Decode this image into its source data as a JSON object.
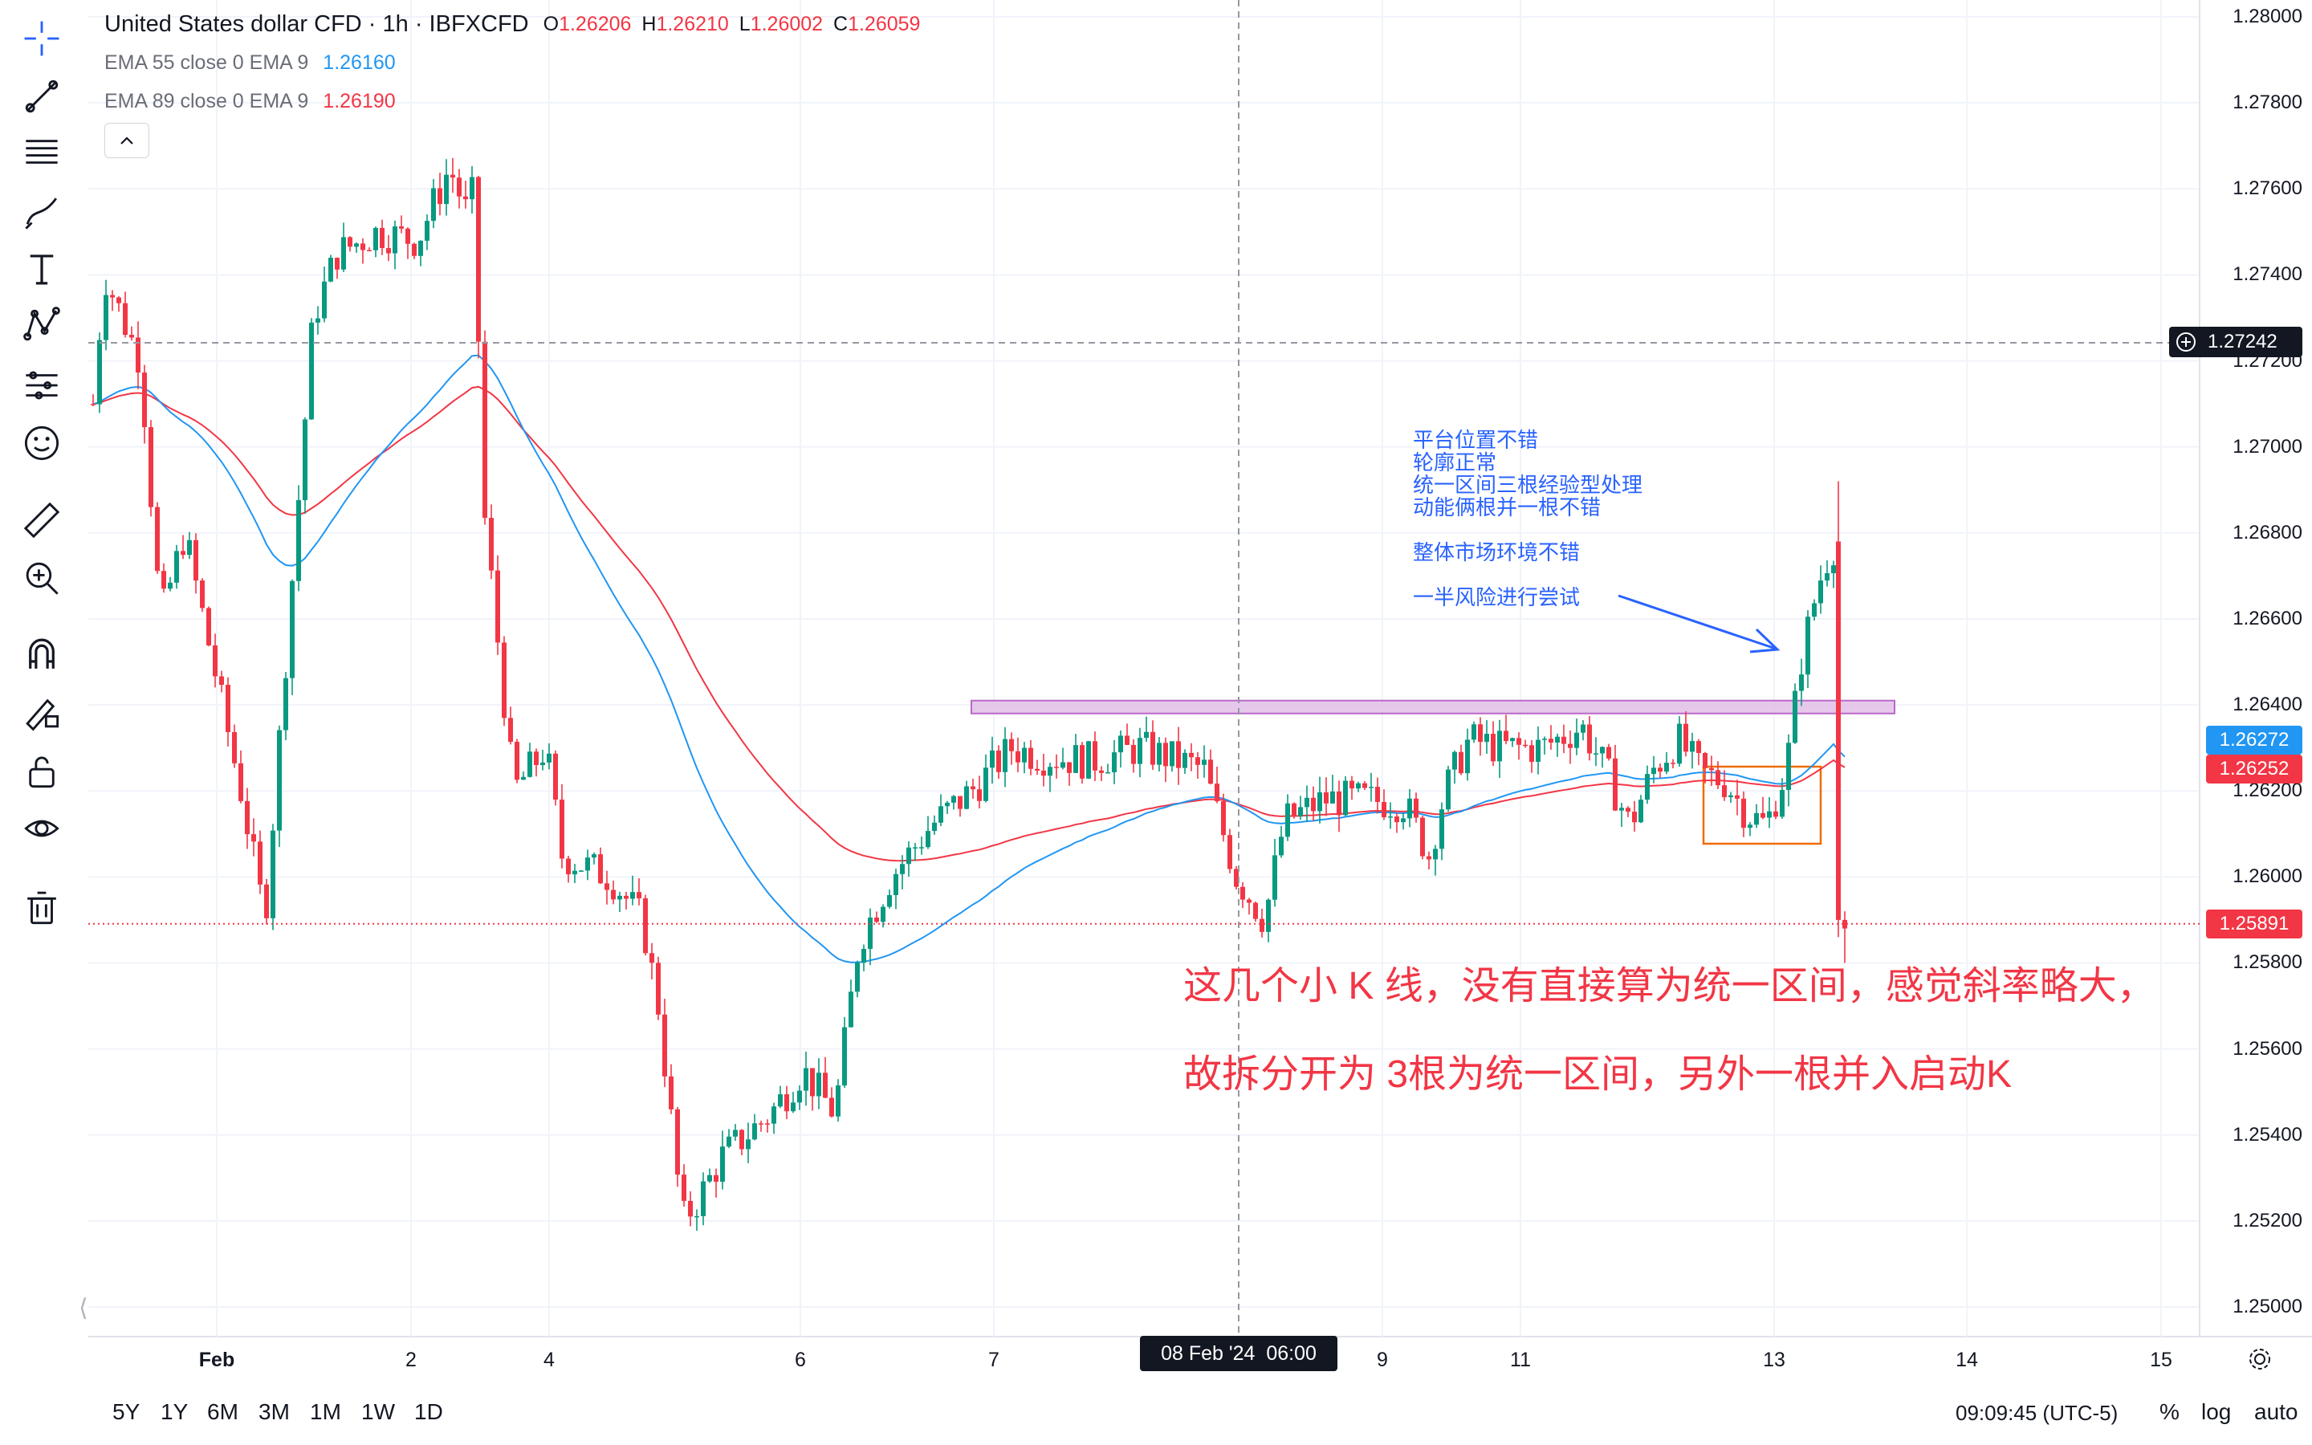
{
  "header": {
    "symbol_title": "United States dollar CFD · 1h · IBFXCFD",
    "ohlc": [
      {
        "key": "O",
        "value": "1.26206"
      },
      {
        "key": "H",
        "value": "1.26210"
      },
      {
        "key": "L",
        "value": "1.26002"
      },
      {
        "key": "C",
        "value": "1.26059"
      }
    ]
  },
  "indicators": [
    {
      "label": "EMA 55 close 0 EMA 9",
      "value": "1.26160",
      "color": "#2196f3"
    },
    {
      "label": "EMA 89 close 0 EMA 9",
      "value": "1.26190",
      "color": "#f23645"
    }
  ],
  "price_axis": {
    "labels": [
      "1.28000",
      "1.27800",
      "1.27600",
      "1.27400",
      "1.27200",
      "1.27000",
      "1.26800",
      "1.26600",
      "1.26400",
      "1.26200",
      "1.26000",
      "1.25800",
      "1.25600",
      "1.25400",
      "1.25200",
      "1.25000"
    ],
    "crosshair_price": "1.27242",
    "ema55_tag": "1.26272",
    "ema89_tag": "1.26252",
    "last_price_tag": "1.25891"
  },
  "time_axis": {
    "labels": [
      "Feb",
      "2",
      "4",
      "6",
      "7",
      "9",
      "11",
      "13",
      "14",
      "15"
    ],
    "crosshair_time": "08 Feb '24  06:00"
  },
  "bottom_bar": {
    "ranges": [
      "5Y",
      "1Y",
      "6M",
      "3M",
      "1M",
      "1W",
      "1D"
    ],
    "clock": "09:09:45 (UTC-5)",
    "percent": "%",
    "log": "log",
    "auto": "auto"
  },
  "annotations": {
    "blue_notes": [
      "平台位置不错",
      "轮廓正常",
      "统一区间三根经验型处理",
      "动能俩根并一根不错",
      "整体市场环境不错",
      "一半风险进行尝试"
    ],
    "red_note": [
      "这几个小 K 线，没有直接算为统一区间，感觉斜率略大，",
      "故拆分开为 3根为统一区间，另外一根并入启动K"
    ]
  },
  "colors": {
    "up": "#089981",
    "down": "#f23645",
    "ema55": "#2196f3",
    "ema89": "#f23645",
    "zone_fill": "#e1bee7",
    "zone_border": "#ba68c8",
    "grid": "#f0f3fa"
  },
  "chart_data": {
    "type": "candlestick",
    "timeframe": "1h",
    "ylim": [
      1.2495,
      1.2803
    ],
    "key_points": [
      {
        "x": "Jan 31",
        "close": 1.274
      },
      {
        "x": "Feb 1",
        "close": 1.27
      },
      {
        "x": "Feb 2",
        "close": 1.2755
      },
      {
        "x": "Feb 3",
        "close": 1.268
      },
      {
        "x": "Feb 4",
        "close": 1.261
      },
      {
        "x": "Feb 5",
        "close": 1.252
      },
      {
        "x": "Feb 6",
        "close": 1.258
      },
      {
        "x": "Feb 7",
        "close": 1.263
      },
      {
        "x": "Feb 8",
        "close": 1.261
      },
      {
        "x": "Feb 9",
        "close": 1.262
      },
      {
        "x": "Feb 11",
        "close": 1.263
      },
      {
        "x": "Feb 12",
        "close": 1.2615
      },
      {
        "x": "Feb 13",
        "close": 1.268
      },
      {
        "x": "Feb 13 last",
        "close": 1.2589
      }
    ],
    "series": [
      {
        "name": "EMA 55",
        "last": 1.26272
      },
      {
        "name": "EMA 89",
        "last": 1.26252
      }
    ],
    "zone": {
      "from": 1.2638,
      "to": 1.2641
    },
    "last_price": 1.25891
  }
}
